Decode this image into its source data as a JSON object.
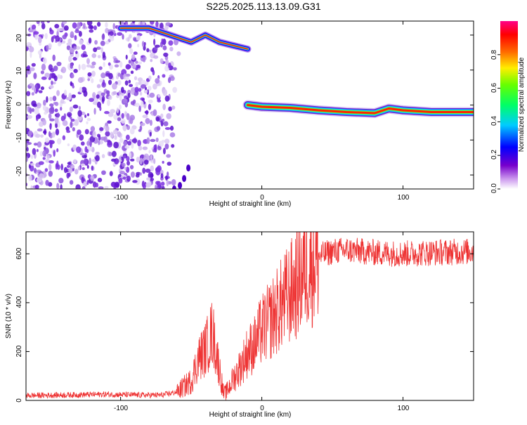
{
  "title": "S225.2025.113.13.09.G31",
  "top_panel": {
    "xlabel": "Height of straight line (km)",
    "ylabel": "Frequency (Hz)",
    "x_ticks": [
      "-100",
      "0",
      "100"
    ],
    "y_ticks": [
      "20",
      "10",
      "0",
      "-10",
      "-20"
    ]
  },
  "colorbar": {
    "label": "Normalized spectral amplitude",
    "ticks": [
      "0.0",
      "0.2",
      "0.4",
      "0.6",
      "0.8"
    ]
  },
  "bottom_panel": {
    "xlabel": "Height of straight line (km)",
    "ylabel": "SNR (10 * v/v)",
    "x_ticks": [
      "-100",
      "0",
      "100"
    ],
    "y_ticks": [
      "0",
      "200",
      "400",
      "600"
    ]
  },
  "colors": {
    "snr_line": "#ee3333",
    "track": "#ff2222"
  },
  "chart_data": [
    {
      "type": "heatmap",
      "title": "S225.2025.113.13.09.G31",
      "xlabel": "Height of straight line (km)",
      "ylabel": "Frequency (Hz)",
      "xlim": [
        -167,
        150
      ],
      "ylim": [
        -24,
        24
      ],
      "colorbar_range": [
        0,
        1
      ],
      "colorbar_label": "Normalized spectral amplitude",
      "features": [
        {
          "name": "noise",
          "x_range": [
            -167,
            -70
          ],
          "y_range": [
            -24,
            24
          ]
        },
        {
          "name": "upper arc",
          "x": [
            -100,
            -80,
            -65,
            -50,
            -40,
            -30,
            -20,
            -10
          ],
          "y": [
            22,
            22,
            20,
            18,
            20,
            18,
            17,
            16
          ]
        },
        {
          "name": "main track",
          "x": [
            -10,
            0,
            20,
            40,
            60,
            80,
            90,
            100,
            120,
            150
          ],
          "y": [
            0,
            -0.5,
            -0.8,
            -1.5,
            -2,
            -2.3,
            -1,
            -1.5,
            -2,
            -2
          ]
        }
      ]
    },
    {
      "type": "line",
      "xlabel": "Height of straight line (km)",
      "ylabel": "SNR (10 * v/v)",
      "xlim": [
        -167,
        150
      ],
      "ylim": [
        0,
        690
      ],
      "x": [
        -167,
        -140,
        -110,
        -90,
        -70,
        -60,
        -50,
        -45,
        -40,
        -35,
        -30,
        -27,
        -25,
        -20,
        -15,
        -10,
        -5,
        0,
        5,
        10,
        15,
        20,
        25,
        30,
        40,
        50,
        60,
        80,
        100,
        120,
        150
      ],
      "y": [
        20,
        22,
        25,
        22,
        22,
        35,
        80,
        170,
        210,
        280,
        130,
        25,
        35,
        90,
        140,
        200,
        230,
        290,
        320,
        360,
        400,
        440,
        480,
        540,
        590,
        610,
        615,
        605,
        600,
        605,
        610
      ]
    }
  ]
}
